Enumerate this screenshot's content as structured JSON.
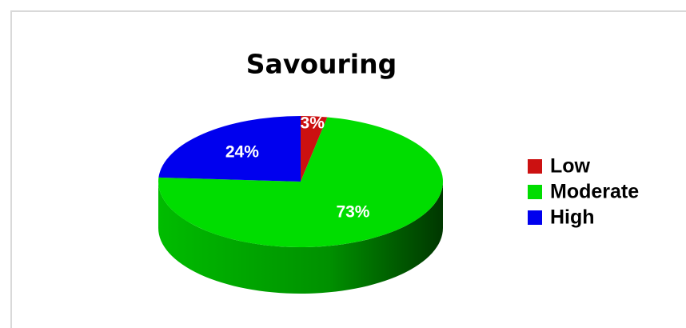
{
  "chart_data": {
    "type": "pie",
    "title": "Savouring",
    "categories": [
      "Low",
      "Moderate",
      "High"
    ],
    "values": [
      3,
      73,
      24
    ],
    "value_labels": [
      "3%",
      "73%",
      "24%"
    ],
    "colors": [
      "#cc1111",
      "#00dd00",
      "#0000ee"
    ],
    "legend": "right"
  }
}
